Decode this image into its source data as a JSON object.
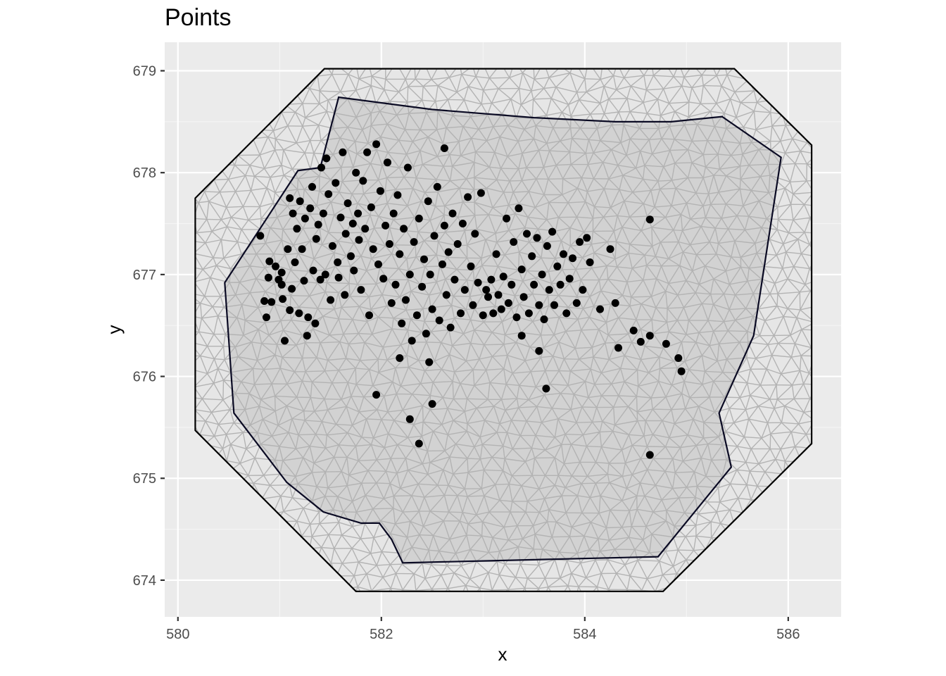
{
  "chart_data": {
    "type": "scatter",
    "title": "Points",
    "xlabel": "x",
    "ylabel": "y",
    "xlim": [
      579.87,
      586.52
    ],
    "ylim": [
      673.64,
      679.28
    ],
    "x_ticks": [
      580,
      582,
      584,
      586
    ],
    "y_ticks": [
      674,
      675,
      676,
      677,
      678,
      679
    ],
    "x_tick_labels": [
      "580",
      "582",
      "584",
      "586"
    ],
    "y_tick_labels": [
      "674",
      "675",
      "676",
      "677",
      "678",
      "679"
    ],
    "grid": true,
    "colors": {
      "panel": "#ebebeb",
      "grid_major": "#ffffff",
      "grid_minor": "#f5f5f5",
      "mesh_fill": "#d2d2d2",
      "mesh_line": "#b3b3b3",
      "inner_boundary": "#0a0a23",
      "outer_boundary": "#000000",
      "points": "#000000"
    },
    "outer_boundary": [
      [
        581.44,
        679.02
      ],
      [
        585.47,
        679.02
      ],
      [
        586.23,
        678.27
      ],
      [
        586.23,
        675.34
      ],
      [
        584.77,
        673.89
      ],
      [
        581.75,
        673.89
      ],
      [
        580.17,
        675.47
      ],
      [
        580.17,
        677.75
      ],
      [
        581.44,
        679.02
      ]
    ],
    "inner_boundary": [
      [
        581.58,
        678.74
      ],
      [
        582.5,
        678.62
      ],
      [
        583.5,
        678.54
      ],
      [
        584.3,
        678.5
      ],
      [
        584.85,
        678.5
      ],
      [
        585.35,
        678.55
      ],
      [
        585.93,
        678.15
      ],
      [
        585.66,
        676.4
      ],
      [
        585.32,
        675.64
      ],
      [
        585.44,
        675.11
      ],
      [
        584.72,
        674.23
      ],
      [
        582.21,
        674.17
      ],
      [
        582.1,
        674.4
      ],
      [
        581.98,
        674.56
      ],
      [
        581.8,
        674.56
      ],
      [
        581.43,
        674.67
      ],
      [
        581.07,
        674.96
      ],
      [
        580.55,
        675.64
      ],
      [
        580.46,
        676.92
      ],
      [
        581.18,
        678.02
      ],
      [
        581.4,
        678.05
      ],
      [
        581.58,
        678.74
      ]
    ],
    "series": [
      {
        "x": [
          580.81,
          580.85,
          580.87,
          580.89,
          580.9,
          580.92,
          580.96,
          580.99,
          581.02,
          581.02,
          581.03,
          581.05,
          581.08,
          581.1,
          581.1,
          581.12,
          581.13,
          581.15,
          581.17,
          581.19,
          581.2,
          581.22,
          581.24,
          581.25,
          581.27,
          581.28,
          581.3,
          581.32,
          581.33,
          581.35,
          581.36,
          581.38,
          581.4,
          581.41,
          581.43,
          581.45,
          581.46,
          581.48,
          581.5,
          581.52,
          581.55,
          581.57,
          581.58,
          581.6,
          581.62,
          581.64,
          581.65,
          581.67,
          581.7,
          581.72,
          581.73,
          581.75,
          581.77,
          581.78,
          581.8,
          581.82,
          581.84,
          581.86,
          581.88,
          581.9,
          581.92,
          581.95,
          581.97,
          581.99,
          582.02,
          582.04,
          582.06,
          582.08,
          582.1,
          582.12,
          582.14,
          582.16,
          582.18,
          582.2,
          582.22,
          582.24,
          582.26,
          582.28,
          582.3,
          582.32,
          582.35,
          582.37,
          582.4,
          582.42,
          582.44,
          582.46,
          582.48,
          582.5,
          582.52,
          582.55,
          582.57,
          582.6,
          582.62,
          582.64,
          582.66,
          582.68,
          582.7,
          582.72,
          582.75,
          582.78,
          582.8,
          582.82,
          582.85,
          582.88,
          582.9,
          582.92,
          582.95,
          582.98,
          583.0,
          583.03,
          583.05,
          583.08,
          583.1,
          583.13,
          583.15,
          583.18,
          583.2,
          583.23,
          583.25,
          583.28,
          583.3,
          583.33,
          583.35,
          583.38,
          583.4,
          583.43,
          583.45,
          583.48,
          583.5,
          583.53,
          583.55,
          583.58,
          583.6,
          583.63,
          583.65,
          583.68,
          583.7,
          583.73,
          583.76,
          583.79,
          583.82,
          583.85,
          583.88,
          583.92,
          583.95,
          583.98,
          584.02,
          584.05,
          584.15,
          584.25,
          584.3,
          584.48,
          584.55,
          584.64,
          584.64,
          584.8,
          584.92,
          584.95,
          584.64,
          584.33,
          583.62,
          582.5,
          582.28,
          582.37,
          581.95,
          582.18,
          582.47,
          583.38,
          583.55,
          582.62
        ],
        "y": [
          677.38,
          676.74,
          676.58,
          676.97,
          677.13,
          676.73,
          677.08,
          676.95,
          676.9,
          677.02,
          676.76,
          676.35,
          677.25,
          676.65,
          677.75,
          676.86,
          677.6,
          677.12,
          677.45,
          676.62,
          677.72,
          677.25,
          676.94,
          677.55,
          676.4,
          676.58,
          677.65,
          677.86,
          677.04,
          676.52,
          677.35,
          677.49,
          676.95,
          678.05,
          677.6,
          677.0,
          678.14,
          677.79,
          676.75,
          677.28,
          677.9,
          677.12,
          676.97,
          677.56,
          678.2,
          676.8,
          677.4,
          677.7,
          677.18,
          677.5,
          677.04,
          678.0,
          677.6,
          677.34,
          676.85,
          677.92,
          677.45,
          678.2,
          676.6,
          677.66,
          677.25,
          678.28,
          677.1,
          677.82,
          676.96,
          677.48,
          678.1,
          677.3,
          676.72,
          677.6,
          676.9,
          677.78,
          677.2,
          676.52,
          677.45,
          676.75,
          678.05,
          677.0,
          676.35,
          677.32,
          676.6,
          677.55,
          676.88,
          677.15,
          676.42,
          677.72,
          677.0,
          676.66,
          677.38,
          677.86,
          676.55,
          677.1,
          677.48,
          676.8,
          677.22,
          676.48,
          677.6,
          676.95,
          677.3,
          676.62,
          677.5,
          676.85,
          677.76,
          677.08,
          676.7,
          677.4,
          676.92,
          677.8,
          676.6,
          676.85,
          676.78,
          676.95,
          676.62,
          677.2,
          676.8,
          676.66,
          676.98,
          677.55,
          676.72,
          676.9,
          677.32,
          676.58,
          677.65,
          677.05,
          676.78,
          677.4,
          676.62,
          677.18,
          676.9,
          677.36,
          676.7,
          677.0,
          676.56,
          677.28,
          676.85,
          677.42,
          676.7,
          677.08,
          676.9,
          677.2,
          676.62,
          676.96,
          677.16,
          676.72,
          677.32,
          676.85,
          677.36,
          677.12,
          676.66,
          677.25,
          676.72,
          676.45,
          676.34,
          676.4,
          677.54,
          676.32,
          676.18,
          676.05,
          675.23,
          676.28,
          675.88,
          675.73,
          675.58,
          675.34,
          675.82,
          676.18,
          676.14,
          676.4,
          676.25,
          678.24
        ]
      }
    ]
  }
}
